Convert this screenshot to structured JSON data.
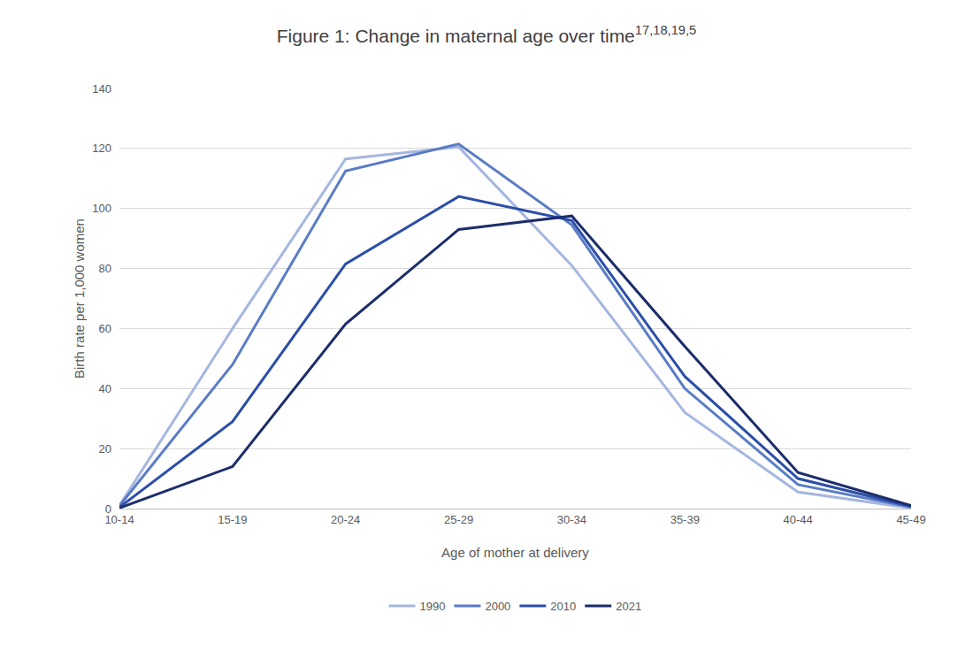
{
  "chart_data": {
    "type": "line",
    "title": "Figure 1: Change in maternal age over time",
    "annotations": [
      "17,18,19,5"
    ],
    "x_label": "Age of mother at delivery",
    "y_label": "Birth rate per 1,000 women",
    "categories": [
      "10-14",
      "15-19",
      "20-24",
      "25-29",
      "30-34",
      "35-39",
      "40-44",
      "45-49"
    ],
    "series": [
      {
        "name": "1990",
        "color": "#a6b6e0",
        "values": [
          1,
          60,
          116.5,
          120.5,
          81,
          32,
          5.5,
          0.2
        ]
      },
      {
        "name": "2000",
        "color": "#5a7cc6",
        "values": [
          0.9,
          48,
          112.5,
          121.5,
          94.5,
          40,
          8,
          0.5
        ]
      },
      {
        "name": "2010",
        "color": "#2b4ea8",
        "values": [
          0.4,
          29,
          81.5,
          104,
          96,
          44,
          10,
          0.7
        ]
      },
      {
        "name": "2021",
        "color": "#1c2d6b",
        "values": [
          0.2,
          14,
          61.5,
          93,
          97.5,
          54,
          12,
          1
        ]
      }
    ],
    "ylim": [
      0,
      140
    ],
    "yticks": [
      0,
      20,
      40,
      60,
      80,
      100,
      120,
      140
    ],
    "grid": true,
    "legend": "bottom"
  }
}
